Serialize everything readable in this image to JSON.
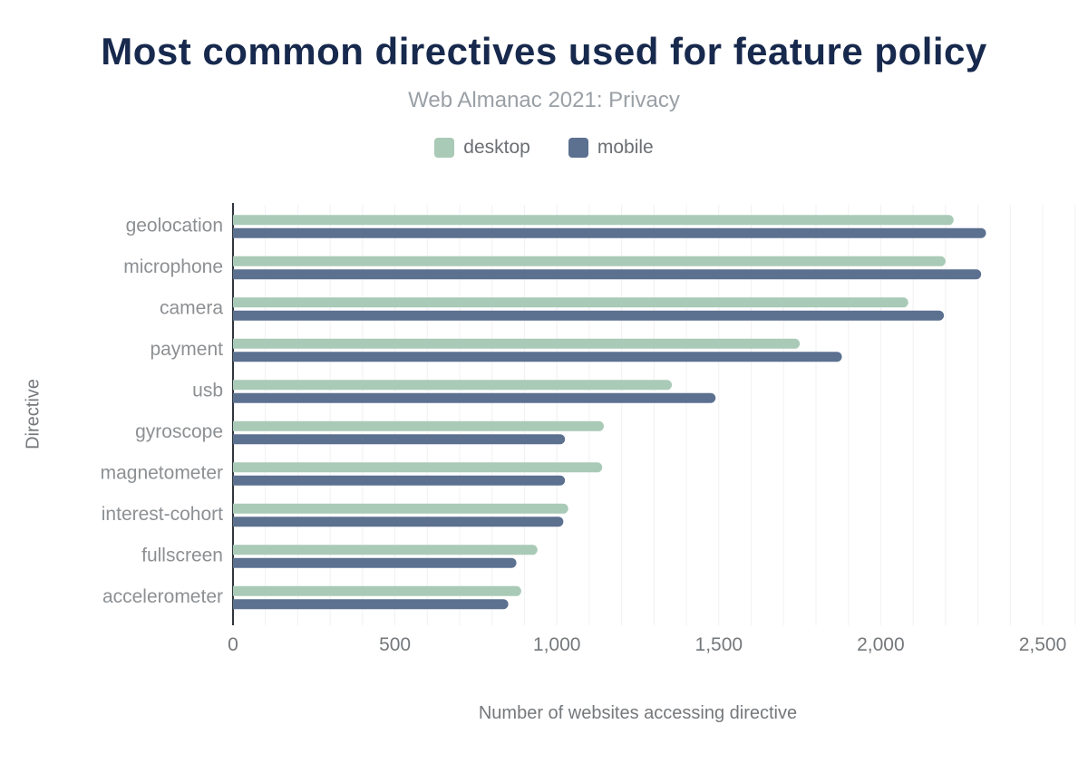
{
  "chart_data": {
    "type": "bar",
    "orientation": "horizontal",
    "title": "Most common directives used for feature policy",
    "subtitle": "Web Almanac 2021: Privacy",
    "xlabel": "Number of websites accessing directive",
    "ylabel": "Directive",
    "categories": [
      "geolocation",
      "microphone",
      "camera",
      "payment",
      "usb",
      "gyroscope",
      "magnetometer",
      "interest-cohort",
      "fullscreen",
      "accelerometer"
    ],
    "series": [
      {
        "name": "desktop",
        "color": "#a9cab7",
        "values": [
          2225,
          2200,
          2085,
          1750,
          1355,
          1145,
          1140,
          1035,
          940,
          890
        ]
      },
      {
        "name": "mobile",
        "color": "#5c7090",
        "values": [
          2325,
          2310,
          2195,
          1880,
          1490,
          1025,
          1025,
          1020,
          875,
          850
        ]
      }
    ],
    "xlim": [
      0,
      2600
    ],
    "xticks": [
      0,
      500,
      1000,
      1500,
      2000,
      2500
    ],
    "xtick_labels": [
      "0",
      "500",
      "1,000",
      "1,500",
      "2,000",
      "2,500"
    ],
    "grid": {
      "on": true,
      "step": 100,
      "color": "#f1f1f3"
    },
    "legend_position": "top",
    "colors": {
      "title": "#17294d",
      "subtitle": "#9aa0a6",
      "axis_line": "#30363c",
      "category_label": "#8d9093",
      "tick_label": "#75787b",
      "axis_title": "#75787b"
    }
  }
}
